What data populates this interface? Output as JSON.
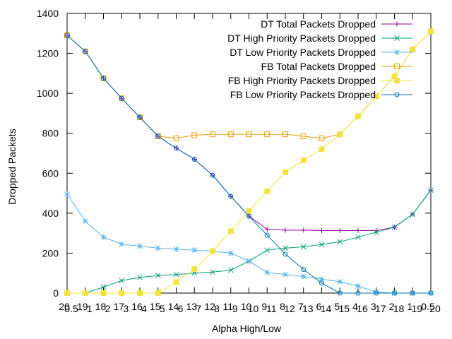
{
  "chart_data": {
    "type": "line",
    "xlabel": "Alpha High/Low",
    "ylabel": "Dropped Packets",
    "ylim": [
      0,
      1400
    ],
    "yticks": [
      "0",
      "200",
      "400",
      "600",
      "800",
      "1000",
      "1200",
      "1400"
    ],
    "x": [
      0,
      1,
      2,
      3,
      4,
      5,
      6,
      7,
      8,
      9,
      10,
      11,
      12,
      13,
      14,
      15,
      16,
      17,
      18,
      19,
      20
    ],
    "xticks": [
      {
        "major": "20",
        "minor": "0.5"
      },
      {
        "major": "19",
        "minor": "1"
      },
      {
        "major": "18",
        "minor": "2"
      },
      {
        "major": "17",
        "minor": "3"
      },
      {
        "major": "16",
        "minor": "4"
      },
      {
        "major": "15",
        "minor": "5"
      },
      {
        "major": "14",
        "minor": "6"
      },
      {
        "major": "13",
        "minor": "7"
      },
      {
        "major": "12",
        "minor": "8"
      },
      {
        "major": "11",
        "minor": "9"
      },
      {
        "major": "10",
        "minor": "10"
      },
      {
        "major": "9",
        "minor": "11"
      },
      {
        "major": "8",
        "minor": "12"
      },
      {
        "major": "7",
        "minor": "13"
      },
      {
        "major": "6",
        "minor": "14"
      },
      {
        "major": "5",
        "minor": "15"
      },
      {
        "major": "4",
        "minor": "16"
      },
      {
        "major": "3",
        "minor": "17"
      },
      {
        "major": "2",
        "minor": "18"
      },
      {
        "major": "1",
        "minor": "19"
      },
      {
        "major": "0.5",
        "minor": "20"
      }
    ],
    "grid": false,
    "legend_position": "top-right",
    "series": [
      {
        "name": "DT Total Packets Dropped",
        "color": "#94009f",
        "marker": "plus",
        "values": [
          1290,
          1210,
          1075,
          975,
          880,
          785,
          725,
          670,
          590,
          485,
          385,
          320,
          315,
          315,
          313,
          313,
          313,
          313,
          330,
          395,
          515
        ]
      },
      {
        "name": "DT High Priority Packets Dropped",
        "color": "#009e73",
        "marker": "x",
        "values": [
          0,
          0,
          30,
          63,
          78,
          88,
          93,
          100,
          105,
          115,
          160,
          215,
          225,
          232,
          243,
          257,
          280,
          305,
          330,
          395,
          515
        ]
      },
      {
        "name": "DT Low Priority Packets Dropped",
        "color": "#56b4e9",
        "marker": "star",
        "values": [
          495,
          360,
          280,
          245,
          235,
          225,
          220,
          215,
          210,
          200,
          160,
          103,
          93,
          83,
          70,
          57,
          35,
          5,
          0,
          0,
          0
        ]
      },
      {
        "name": "FB Total Packets Dropped",
        "color": "#e69f00",
        "marker": "square",
        "values": [
          1290,
          1210,
          1075,
          975,
          880,
          785,
          775,
          790,
          795,
          795,
          795,
          795,
          795,
          785,
          775,
          795,
          885,
          985,
          1085,
          1220,
          1310
        ]
      },
      {
        "name": "FB High Priority Packets Dropped",
        "color": "#f0e442",
        "marker": "filled-square",
        "values": [
          0,
          0,
          0,
          0,
          0,
          0,
          55,
          120,
          210,
          310,
          410,
          510,
          605,
          665,
          720,
          795,
          885,
          985,
          1085,
          1220,
          1310
        ]
      },
      {
        "name": "FB Low Priority Packets Dropped",
        "color": "#0072b2",
        "marker": "circle",
        "values": [
          1290,
          1210,
          1075,
          975,
          880,
          785,
          725,
          670,
          590,
          485,
          385,
          290,
          195,
          118,
          50,
          0,
          0,
          0,
          0,
          0,
          0
        ]
      }
    ]
  }
}
